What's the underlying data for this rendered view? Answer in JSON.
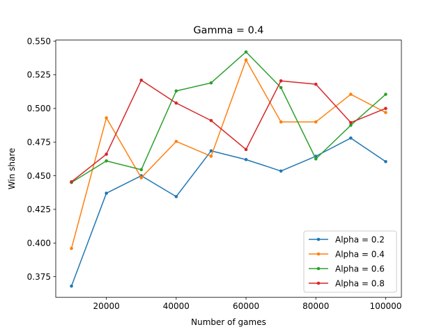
{
  "chart_data": {
    "type": "line",
    "title": "Gamma = 0.4",
    "xlabel": "Number of games",
    "ylabel": "Win share",
    "x": [
      10000,
      20000,
      30000,
      40000,
      50000,
      60000,
      70000,
      80000,
      90000,
      100000
    ],
    "xlim": [
      5500,
      104500
    ],
    "ylim": [
      0.3597,
      0.5508
    ],
    "xticks": [
      20000,
      40000,
      60000,
      80000,
      100000
    ],
    "xtick_labels": [
      "20000",
      "40000",
      "60000",
      "80000",
      "100000"
    ],
    "yticks": [
      0.375,
      0.4,
      0.425,
      0.45,
      0.475,
      0.5,
      0.525,
      0.55
    ],
    "ytick_labels": [
      "0.375",
      "0.400",
      "0.425",
      "0.450",
      "0.475",
      "0.500",
      "0.525",
      "0.550"
    ],
    "grid": false,
    "legend_position": "lower-right",
    "series": [
      {
        "name": "Alpha = 0.2",
        "color": "#1f77b4",
        "values": [
          0.368,
          0.437,
          0.45,
          0.4345,
          0.4685,
          0.462,
          0.4535,
          0.4645,
          0.478,
          0.4605
        ]
      },
      {
        "name": "Alpha = 0.4",
        "color": "#ff7f0e",
        "values": [
          0.396,
          0.493,
          0.4485,
          0.4755,
          0.4645,
          0.536,
          0.49,
          0.49,
          0.5105,
          0.497
        ]
      },
      {
        "name": "Alpha = 0.6",
        "color": "#2ca02c",
        "values": [
          0.445,
          0.461,
          0.4545,
          0.513,
          0.519,
          0.542,
          0.5155,
          0.4625,
          0.4875,
          0.5105
        ]
      },
      {
        "name": "Alpha = 0.8",
        "color": "#d62728",
        "values": [
          0.4455,
          0.466,
          0.521,
          0.504,
          0.491,
          0.4695,
          0.5205,
          0.518,
          0.4895,
          0.5
        ]
      }
    ]
  }
}
